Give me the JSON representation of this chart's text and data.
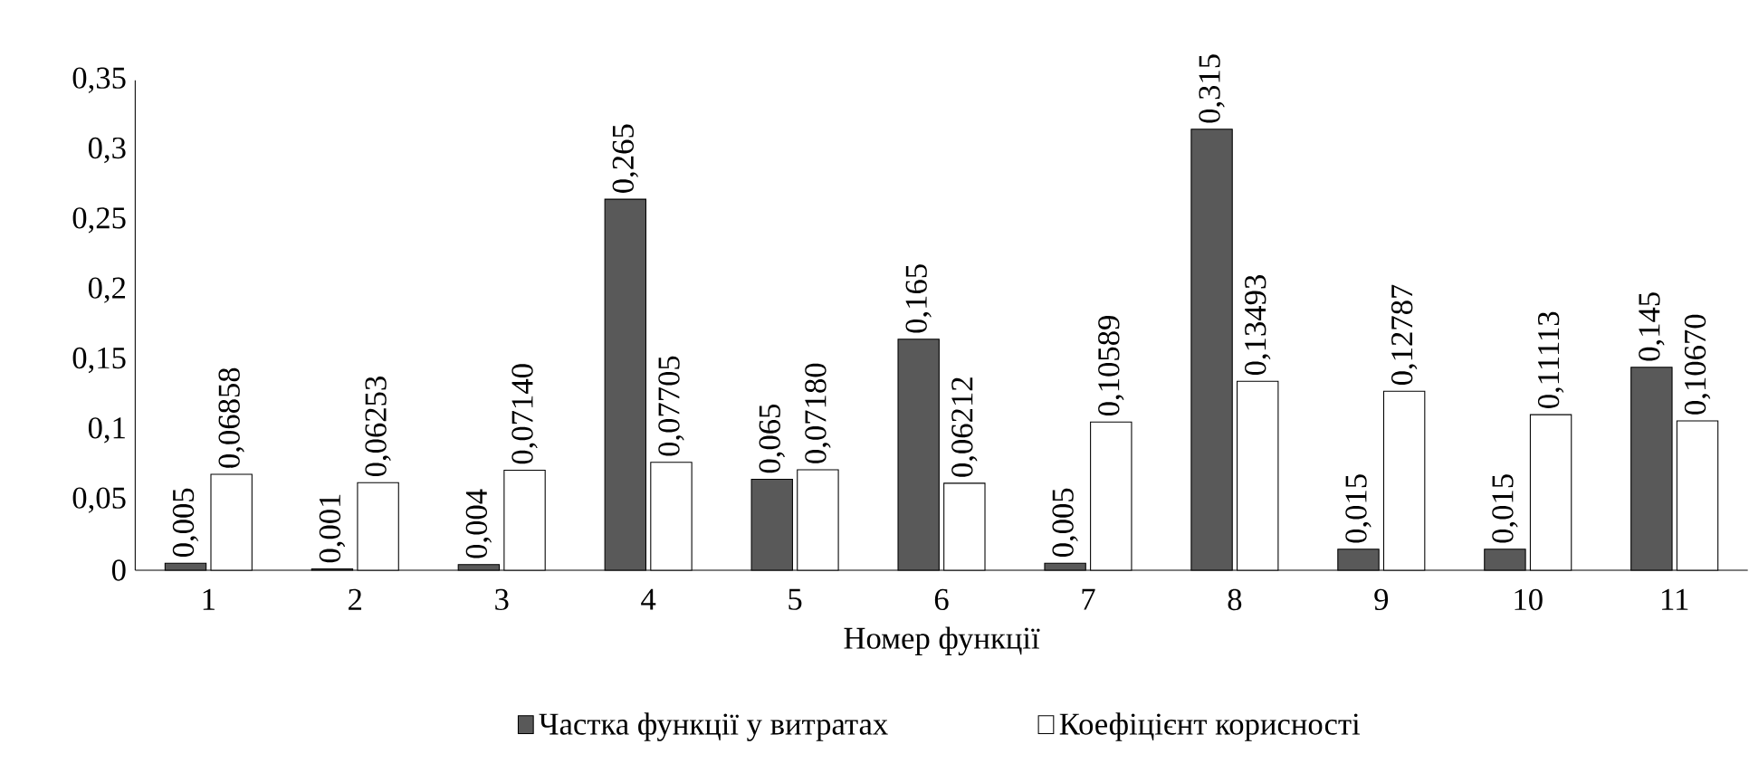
{
  "chart_data": {
    "type": "bar",
    "xlabel": "Номер функції",
    "categories": [
      "1",
      "2",
      "3",
      "4",
      "5",
      "6",
      "7",
      "8",
      "9",
      "10",
      "11"
    ],
    "ylim": [
      0,
      0.35
    ],
    "yticks": [
      {
        "value": 0,
        "label": "0"
      },
      {
        "value": 0.05,
        "label": "0,05"
      },
      {
        "value": 0.1,
        "label": "0,1"
      },
      {
        "value": 0.15,
        "label": "0,15"
      },
      {
        "value": 0.2,
        "label": "0,2"
      },
      {
        "value": 0.25,
        "label": "0,25"
      },
      {
        "value": 0.3,
        "label": "0,3"
      },
      {
        "value": 0.35,
        "label": "0,35"
      }
    ],
    "legend": "bottom",
    "grid": false,
    "series": [
      {
        "name": "Частка функції  у витратах",
        "color": "#595959",
        "values": [
          0.005,
          0.001,
          0.004,
          0.265,
          0.065,
          0.165,
          0.005,
          0.315,
          0.015,
          0.015,
          0.145
        ],
        "value_labels": [
          "0,005",
          "0,001",
          "0,004",
          "0,265",
          "0,065",
          "0,165",
          "0,005",
          "0,315",
          "0,015",
          "0,015",
          "0,145"
        ]
      },
      {
        "name": "Коефіцієнт корисності",
        "color": "#ffffff",
        "values": [
          0.06858,
          0.06253,
          0.0714,
          0.07705,
          0.0718,
          0.06212,
          0.10589,
          0.13493,
          0.12787,
          0.11113,
          0.1067
        ],
        "value_labels": [
          "0,06858",
          "0,06253",
          "0,07140",
          "0,07705",
          "0,07180",
          "0,06212",
          "0,10589",
          "0,13493",
          "0,12787",
          "0,11113",
          "0,10670"
        ]
      }
    ]
  }
}
